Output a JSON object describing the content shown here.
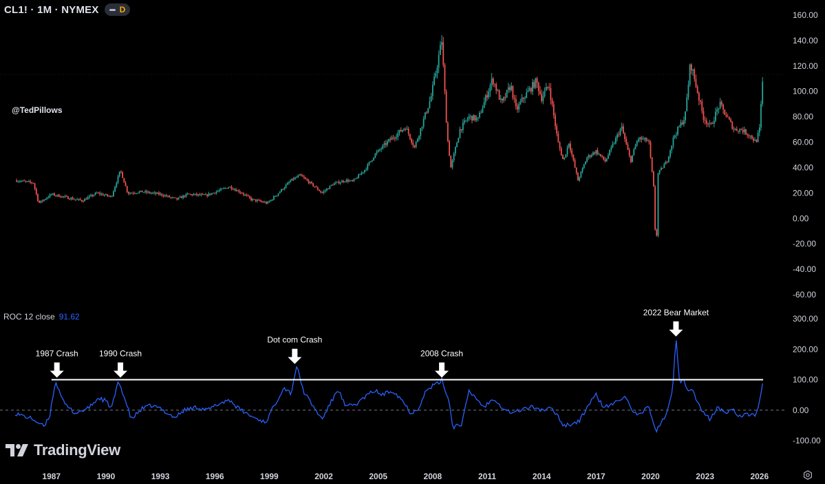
{
  "header": {
    "symbol": "CL1! · 1M · NYMEX",
    "interval_badge": "D"
  },
  "watermark_handle": "@TedPillows",
  "indicator": {
    "name": "ROC 12 close",
    "value": "91.62"
  },
  "brand": {
    "name": "TradingView",
    "logo_icon": "tradingview-logo-icon"
  },
  "settings_icon": "gear-icon",
  "colors": {
    "background": "#000000",
    "up_candle": "#26a69a",
    "down_candle": "#ef5350",
    "roc_line": "#2962ff",
    "threshold_line": "#ffffff",
    "axis_text": "#d1d4dc"
  },
  "chart_data": [
    {
      "type": "candlestick",
      "price_axis_ticks": [
        "160.00",
        "140.00",
        "120.00",
        "100.00",
        "80.00",
        "60.00",
        "40.00",
        "20.00",
        "0.00",
        "-20.00",
        "-40.00",
        "-60.00"
      ],
      "ylim": [
        -60,
        160
      ],
      "x_ticks": [
        "1987",
        "1990",
        "1993",
        "1996",
        "1999",
        "2002",
        "2005",
        "2008",
        "2011",
        "2014",
        "2017",
        "2020",
        "2023",
        "2026"
      ],
      "xlim": [
        1985,
        2026.5
      ],
      "series": [
        {
          "values": [
            [
              1985,
              30
            ],
            [
              1986.0,
              28
            ],
            [
              1986.3,
              12
            ],
            [
              1987.0,
              19
            ],
            [
              1988.0,
              16
            ],
            [
              1988.7,
              14
            ],
            [
              1989.5,
              20
            ],
            [
              1990.3,
              17
            ],
            [
              1990.8,
              38
            ],
            [
              1991.2,
              20
            ],
            [
              1992.0,
              21
            ],
            [
              1993.0,
              19
            ],
            [
              1993.9,
              15
            ],
            [
              1994.5,
              19
            ],
            [
              1995.5,
              18
            ],
            [
              1996.8,
              25
            ],
            [
              1997.5,
              20
            ],
            [
              1998.0,
              15
            ],
            [
              1998.9,
              12
            ],
            [
              1999.5,
              20
            ],
            [
              2000.2,
              30
            ],
            [
              2000.7,
              34
            ],
            [
              2001.5,
              25
            ],
            [
              2001.9,
              20
            ],
            [
              2002.5,
              27
            ],
            [
              2003.2,
              30
            ],
            [
              2003.6,
              29
            ],
            [
              2004.3,
              39
            ],
            [
              2004.8,
              50
            ],
            [
              2005.5,
              60
            ],
            [
              2006.5,
              72
            ],
            [
              2007.0,
              56
            ],
            [
              2007.9,
              95
            ],
            [
              2008.3,
              125
            ],
            [
              2008.5,
              140
            ],
            [
              2008.8,
              65
            ],
            [
              2009.0,
              40
            ],
            [
              2009.5,
              70
            ],
            [
              2010.0,
              80
            ],
            [
              2010.5,
              78
            ],
            [
              2011.3,
              110
            ],
            [
              2011.8,
              90
            ],
            [
              2012.3,
              105
            ],
            [
              2012.6,
              85
            ],
            [
              2013.0,
              95
            ],
            [
              2013.7,
              108
            ],
            [
              2014.0,
              95
            ],
            [
              2014.4,
              105
            ],
            [
              2014.9,
              60
            ],
            [
              2015.2,
              45
            ],
            [
              2015.5,
              60
            ],
            [
              2016.0,
              30
            ],
            [
              2016.5,
              48
            ],
            [
              2017.0,
              53
            ],
            [
              2017.5,
              45
            ],
            [
              2018.4,
              72
            ],
            [
              2018.9,
              45
            ],
            [
              2019.3,
              63
            ],
            [
              2019.9,
              61
            ],
            [
              2020.2,
              20
            ],
            [
              2020.3,
              -37
            ],
            [
              2020.4,
              35
            ],
            [
              2020.9,
              45
            ],
            [
              2021.3,
              65
            ],
            [
              2021.9,
              80
            ],
            [
              2022.2,
              123
            ],
            [
              2022.5,
              105
            ],
            [
              2022.9,
              80
            ],
            [
              2023.3,
              72
            ],
            [
              2023.8,
              90
            ],
            [
              2024.2,
              80
            ],
            [
              2024.6,
              70
            ],
            [
              2025.0,
              70
            ],
            [
              2025.5,
              65
            ],
            [
              2025.8,
              60
            ],
            [
              2026.0,
              70
            ],
            [
              2026.2,
              114
            ]
          ]
        }
      ]
    },
    {
      "type": "line",
      "axis_ticks": [
        "300.00",
        "200.00",
        "100.00",
        "0.00",
        "-100.00"
      ],
      "ylim": [
        -100,
        300
      ],
      "threshold": 100,
      "zero_line": 0,
      "series": [
        {
          "values": [
            [
              1985,
              -10
            ],
            [
              1986.0,
              -30
            ],
            [
              1986.6,
              -55
            ],
            [
              1986.9,
              -20
            ],
            [
              1987.2,
              92
            ],
            [
              1987.45,
              65
            ],
            [
              1987.7,
              20
            ],
            [
              1988.3,
              -10
            ],
            [
              1989.0,
              5
            ],
            [
              1989.6,
              40
            ],
            [
              1990.0,
              30
            ],
            [
              1990.3,
              5
            ],
            [
              1990.7,
              95
            ],
            [
              1991.0,
              45
            ],
            [
              1991.4,
              -30
            ],
            [
              1992.0,
              5
            ],
            [
              1992.5,
              15
            ],
            [
              1993.0,
              5
            ],
            [
              1993.8,
              -25
            ],
            [
              1994.3,
              0
            ],
            [
              1995.0,
              10
            ],
            [
              1995.6,
              0
            ],
            [
              1996.2,
              20
            ],
            [
              1996.8,
              35
            ],
            [
              1997.3,
              5
            ],
            [
              1998.0,
              -20
            ],
            [
              1998.8,
              -40
            ],
            [
              1999.4,
              30
            ],
            [
              1999.8,
              75
            ],
            [
              2000.2,
              55
            ],
            [
              2000.5,
              145
            ],
            [
              2000.9,
              60
            ],
            [
              2001.5,
              5
            ],
            [
              2001.9,
              -30
            ],
            [
              2002.3,
              15
            ],
            [
              2002.8,
              70
            ],
            [
              2003.2,
              10
            ],
            [
              2003.8,
              20
            ],
            [
              2004.3,
              45
            ],
            [
              2004.8,
              65
            ],
            [
              2005.2,
              50
            ],
            [
              2005.8,
              65
            ],
            [
              2006.3,
              35
            ],
            [
              2006.8,
              -10
            ],
            [
              2007.2,
              5
            ],
            [
              2007.6,
              60
            ],
            [
              2008.0,
              80
            ],
            [
              2008.3,
              88
            ],
            [
              2008.5,
              100
            ],
            [
              2008.9,
              30
            ],
            [
              2009.1,
              -55
            ],
            [
              2009.6,
              -45
            ],
            [
              2010.0,
              60
            ],
            [
              2010.4,
              40
            ],
            [
              2010.8,
              10
            ],
            [
              2011.4,
              40
            ],
            [
              2011.8,
              10
            ],
            [
              2012.4,
              -10
            ],
            [
              2013.0,
              5
            ],
            [
              2013.6,
              10
            ],
            [
              2014.0,
              0
            ],
            [
              2014.5,
              5
            ],
            [
              2014.8,
              -10
            ],
            [
              2015.2,
              -50
            ],
            [
              2015.7,
              -45
            ],
            [
              2016.1,
              -35
            ],
            [
              2016.6,
              20
            ],
            [
              2017.0,
              50
            ],
            [
              2017.4,
              10
            ],
            [
              2017.8,
              15
            ],
            [
              2018.3,
              35
            ],
            [
              2018.6,
              50
            ],
            [
              2019.0,
              -10
            ],
            [
              2019.5,
              -15
            ],
            [
              2019.9,
              15
            ],
            [
              2020.3,
              -70
            ],
            [
              2020.6,
              -40
            ],
            [
              2020.9,
              -10
            ],
            [
              2021.2,
              60
            ],
            [
              2021.4,
              235
            ],
            [
              2021.6,
              90
            ],
            [
              2021.8,
              110
            ],
            [
              2022.0,
              70
            ],
            [
              2022.3,
              65
            ],
            [
              2022.6,
              25
            ],
            [
              2022.9,
              -10
            ],
            [
              2023.3,
              -30
            ],
            [
              2023.7,
              10
            ],
            [
              2024.1,
              -10
            ],
            [
              2024.5,
              5
            ],
            [
              2024.9,
              -20
            ],
            [
              2025.4,
              -15
            ],
            [
              2025.8,
              -15
            ],
            [
              2026.0,
              30
            ],
            [
              2026.2,
              92
            ]
          ]
        }
      ],
      "annotations": [
        {
          "label": "1987 Crash",
          "x": 1987.3,
          "y": 100
        },
        {
          "label": "1990 Crash",
          "x": 1990.8,
          "y": 100
        },
        {
          "label": "Dot com Crash",
          "x": 2000.4,
          "y": 145
        },
        {
          "label": "2008 Crash",
          "x": 2008.5,
          "y": 100
        },
        {
          "label": "2022 Bear Market",
          "x": 2021.4,
          "y": 235
        }
      ]
    }
  ]
}
